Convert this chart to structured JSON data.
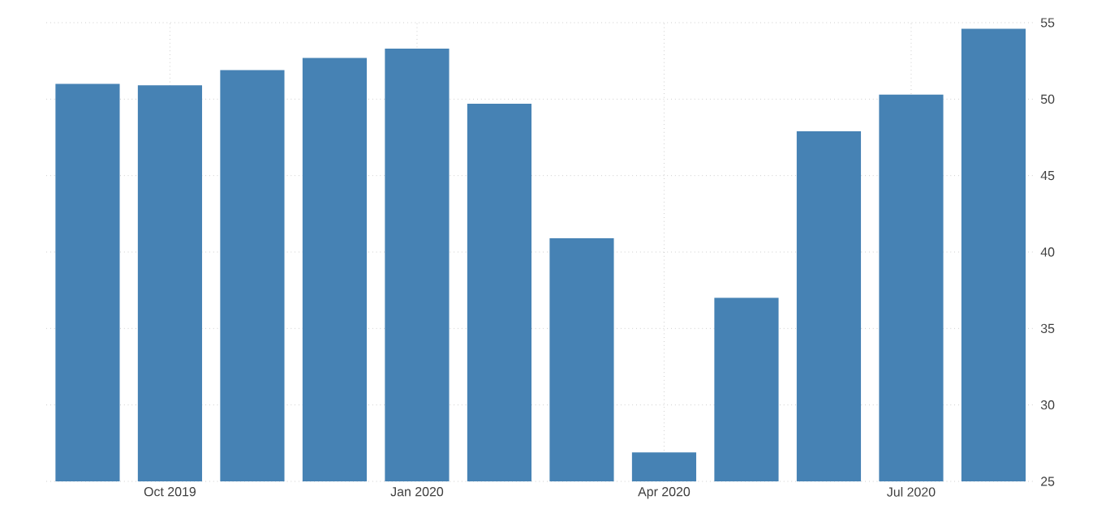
{
  "chart_data": {
    "type": "bar",
    "categories": [
      null,
      "Oct 2019",
      null,
      null,
      "Jan 2020",
      null,
      null,
      "Apr 2020",
      null,
      null,
      "Jul 2020",
      null
    ],
    "values": [
      51.0,
      50.9,
      51.9,
      52.7,
      53.3,
      49.7,
      40.9,
      26.9,
      37.0,
      47.9,
      50.3,
      54.6
    ],
    "color": "#4682b4",
    "ylim": [
      25,
      55
    ],
    "yticks": [
      25,
      30,
      35,
      40,
      45,
      50,
      55
    ],
    "grid": true
  }
}
